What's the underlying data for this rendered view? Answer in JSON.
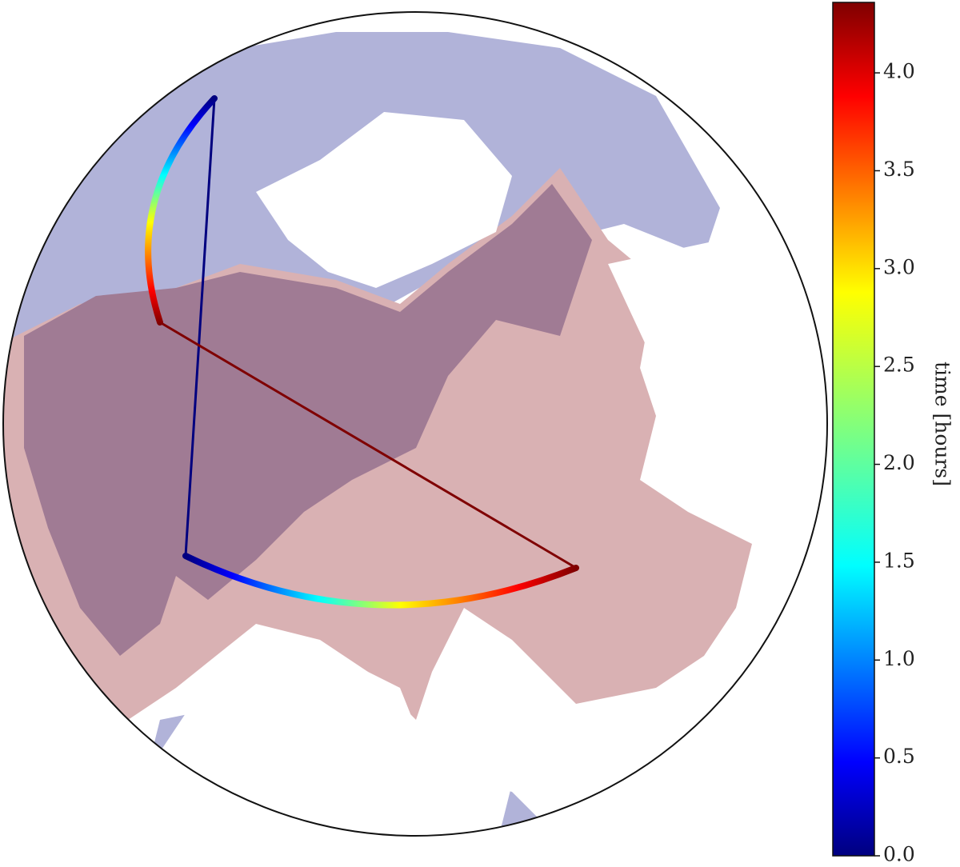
{
  "chart_data": {
    "type": "map",
    "colorbar": {
      "label": "time [hours]",
      "lim": [
        0,
        4.36
      ],
      "ticks": [
        {
          "value": 0,
          "label": "0.0"
        },
        {
          "value": 0.5,
          "label": "0.5"
        },
        {
          "value": 1,
          "label": "1.0"
        },
        {
          "value": 1.5,
          "label": "1.5"
        },
        {
          "value": 2,
          "label": "2.0"
        },
        {
          "value": 2.5,
          "label": "2.5"
        },
        {
          "value": 3,
          "label": "3.0"
        },
        {
          "value": 3.5,
          "label": "3.5"
        },
        {
          "value": 4,
          "label": "4.0"
        }
      ]
    }
  }
}
